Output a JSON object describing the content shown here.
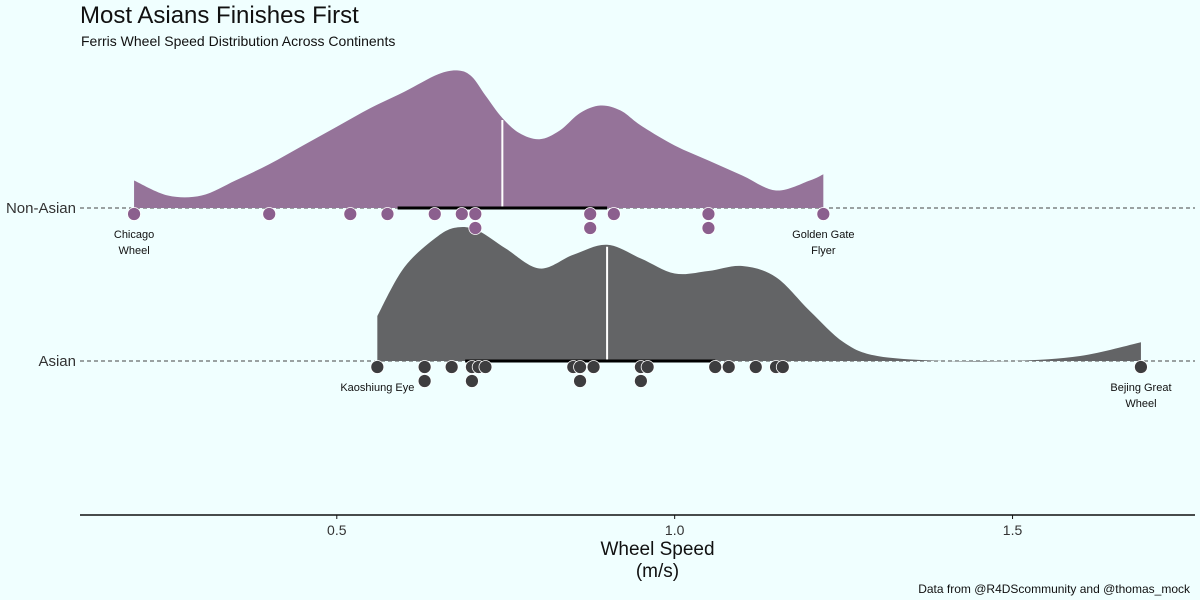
{
  "colors": {
    "background": "#f0ffff",
    "non_asian_fill": "#957399",
    "asian_fill": "#636466",
    "non_asian_point": "#8b5f8e",
    "asian_point": "#3d3d3f",
    "median_line": "#ffffff",
    "reference_line": "#444444",
    "axis": "#111111"
  },
  "chart_data": {
    "type": "raincloud",
    "title": "Most Asians Finishes First",
    "subtitle": "Ferris Wheel Speed Distribution Across Continents",
    "xlabel": [
      "Wheel Speed",
      "(m/s)"
    ],
    "ylabel": "",
    "caption": "Data from @R4DScommunity and @thomas_mock",
    "xlim": [
      0.12,
      1.77
    ],
    "x_ticks": [
      0.5,
      1.0,
      1.5
    ],
    "x_tick_labels": [
      "0.5",
      "1.0",
      "1.5"
    ],
    "categories": [
      "Non-Asian",
      "Asian"
    ],
    "grid": false,
    "legend": "none",
    "series": [
      {
        "name": "Non-Asian",
        "median": 0.745,
        "interval": [
          0.59,
          0.9
        ],
        "density": [
          [
            0.2,
            0.22
          ],
          [
            0.25,
            0.1
          ],
          [
            0.3,
            0.1
          ],
          [
            0.35,
            0.22
          ],
          [
            0.4,
            0.35
          ],
          [
            0.45,
            0.5
          ],
          [
            0.5,
            0.65
          ],
          [
            0.55,
            0.8
          ],
          [
            0.6,
            0.93
          ],
          [
            0.65,
            1.07
          ],
          [
            0.68,
            1.1
          ],
          [
            0.7,
            1.05
          ],
          [
            0.72,
            0.9
          ],
          [
            0.745,
            0.72
          ],
          [
            0.77,
            0.6
          ],
          [
            0.8,
            0.55
          ],
          [
            0.83,
            0.62
          ],
          [
            0.86,
            0.76
          ],
          [
            0.89,
            0.82
          ],
          [
            0.92,
            0.78
          ],
          [
            0.95,
            0.66
          ],
          [
            1.0,
            0.5
          ],
          [
            1.05,
            0.38
          ],
          [
            1.1,
            0.26
          ],
          [
            1.15,
            0.14
          ],
          [
            1.2,
            0.22
          ],
          [
            1.22,
            0.27
          ]
        ],
        "points": [
          0.2,
          0.4,
          0.52,
          0.575,
          0.645,
          0.685,
          0.705,
          0.705,
          0.875,
          0.875,
          0.91,
          1.05,
          1.05,
          1.22
        ],
        "labels": [
          {
            "x": 0.2,
            "lines": [
              "Chicago",
              "Wheel"
            ]
          },
          {
            "x": 1.22,
            "lines": [
              "Golden Gate",
              "Flyer"
            ]
          }
        ]
      },
      {
        "name": "Asian",
        "median": 0.9,
        "interval": [
          0.69,
          1.06
        ],
        "density": [
          [
            0.56,
            0.36
          ],
          [
            0.6,
            0.75
          ],
          [
            0.65,
            1.0
          ],
          [
            0.68,
            1.07
          ],
          [
            0.71,
            1.04
          ],
          [
            0.75,
            0.9
          ],
          [
            0.8,
            0.74
          ],
          [
            0.85,
            0.85
          ],
          [
            0.9,
            0.93
          ],
          [
            0.95,
            0.82
          ],
          [
            1.0,
            0.7
          ],
          [
            1.05,
            0.72
          ],
          [
            1.1,
            0.76
          ],
          [
            1.15,
            0.67
          ],
          [
            1.2,
            0.4
          ],
          [
            1.25,
            0.15
          ],
          [
            1.3,
            0.04
          ],
          [
            1.4,
            0.0
          ],
          [
            1.5,
            0.0
          ],
          [
            1.6,
            0.04
          ],
          [
            1.69,
            0.15
          ]
        ],
        "points": [
          0.56,
          0.63,
          0.63,
          0.67,
          0.7,
          0.7,
          0.71,
          0.72,
          0.85,
          0.86,
          0.86,
          0.88,
          0.95,
          0.95,
          0.96,
          1.06,
          1.08,
          1.12,
          1.15,
          1.16,
          1.69
        ],
        "labels": [
          {
            "x": 0.56,
            "lines": [
              "Kaoshiung Eye"
            ]
          },
          {
            "x": 1.69,
            "lines": [
              "Bejing Great",
              "Wheel"
            ]
          }
        ]
      }
    ]
  }
}
